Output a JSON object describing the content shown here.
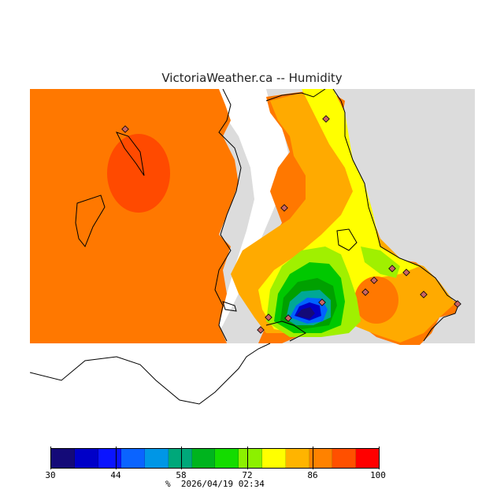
{
  "title": "VictoriaWeather.ca -- Humidity",
  "legend": {
    "colors": [
      "#140a78",
      "#0000c8",
      "#0a14ff",
      "#0a64ff",
      "#0096e6",
      "#00a87a",
      "#00b41e",
      "#14dc00",
      "#8cf000",
      "#ffff00",
      "#ffb400",
      "#ff8200",
      "#ff5000",
      "#ff0000"
    ],
    "ticks": [
      "30",
      "44",
      "58",
      "72",
      "86",
      "100"
    ],
    "unit": "%",
    "timestamp": "2026/04/19 02:34"
  },
  "map": {
    "colors": {
      "land_grey": "#dcdcdc",
      "sea_white": "#ffffff",
      "base_orange": "#ff7800",
      "light_orange": "#ffaa00",
      "yellow": "#ffff00",
      "yellow_green": "#a0f000",
      "green": "#00c800",
      "green_dark": "#00a000",
      "teal": "#00a896",
      "blue": "#0064ff",
      "blue_dark": "#0000c8",
      "navy": "#140a78",
      "red_orange": "#ff4a00"
    },
    "stations": [
      "station-1",
      "station-2",
      "station-3",
      "station-4",
      "station-5",
      "station-6",
      "station-7",
      "station-8",
      "station-9",
      "station-10",
      "station-11",
      "station-12",
      "station-13"
    ]
  }
}
